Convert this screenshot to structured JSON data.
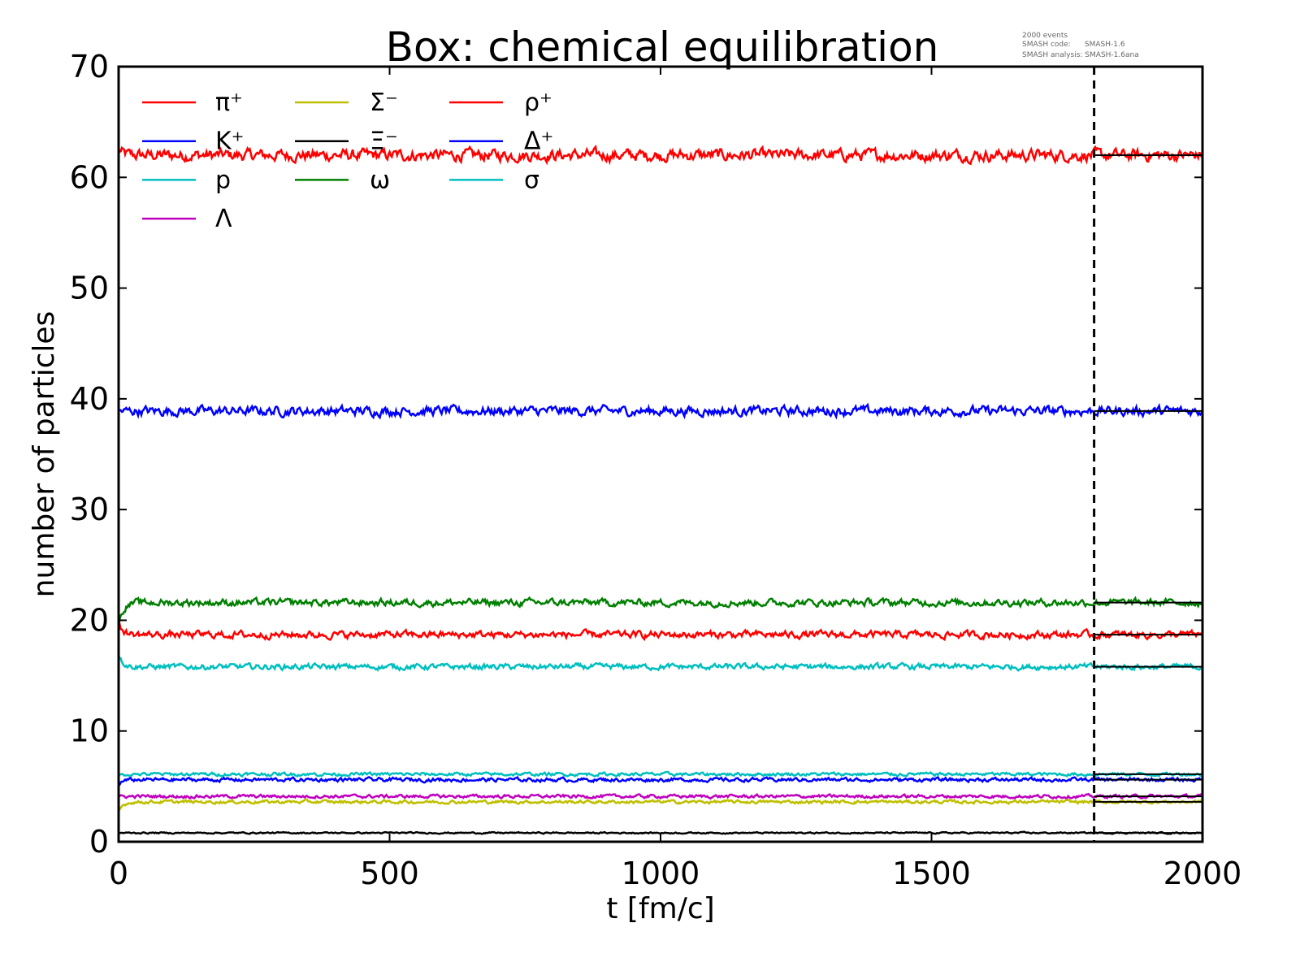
{
  "chart_data": {
    "type": "line",
    "title": "Box: chemical equilibration",
    "xlabel": "t [fm/c]",
    "ylabel": "number of particles",
    "xlim": [
      0,
      2000
    ],
    "ylim": [
      0,
      70
    ],
    "xticks": [
      0,
      500,
      1000,
      1500,
      2000
    ],
    "yticks": [
      0,
      10,
      20,
      30,
      40,
      50,
      60,
      70
    ],
    "grid": false,
    "legend_placement": "top-left",
    "annotation": [
      "2000 events",
      "SMASH code:      SMASH-1.6",
      "SMASH analysis: SMASH-1.6ana"
    ],
    "equilibrium_marker_t": 1800,
    "series": [
      {
        "name": "π⁺",
        "color": "#ff0000",
        "start": 62.5,
        "mean": 62.0,
        "noise": 0.25
      },
      {
        "name": "K⁺",
        "color": "#0000ff",
        "start": 38.8,
        "mean": 38.9,
        "noise": 0.2
      },
      {
        "name": "p",
        "color": "#00bfbf",
        "start": 17.0,
        "mean": 15.8,
        "noise": 0.12
      },
      {
        "name": "Λ",
        "color": "#bf00bf",
        "start": 4.0,
        "mean": 4.1,
        "noise": 0.07
      },
      {
        "name": "Σ⁻",
        "color": "#bfbf00",
        "start": 2.7,
        "mean": 3.6,
        "noise": 0.07
      },
      {
        "name": "Ξ⁻",
        "color": "#000000",
        "start": 0.8,
        "mean": 0.8,
        "noise": 0.03
      },
      {
        "name": "ω",
        "color": "#008000",
        "start": 19.5,
        "mean": 21.6,
        "noise": 0.15
      },
      {
        "name": "ρ⁺",
        "color": "#ff0000",
        "start": 19.8,
        "mean": 18.7,
        "noise": 0.15
      },
      {
        "name": "Δ⁺",
        "color": "#0000ff",
        "start": 5.2,
        "mean": 5.6,
        "noise": 0.08
      },
      {
        "name": "σ",
        "color": "#00bfbf",
        "start": 6.0,
        "mean": 6.1,
        "noise": 0.07
      }
    ]
  }
}
